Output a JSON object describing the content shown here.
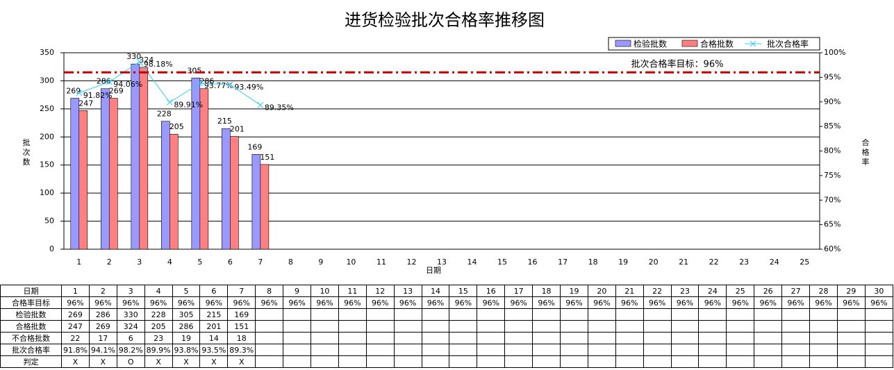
{
  "chart_data": {
    "type": "bar",
    "title": "进货检验批次合格率推移图",
    "categories": [
      1,
      2,
      3,
      4,
      5,
      6,
      7,
      8,
      9,
      10,
      11,
      12,
      13,
      14,
      15,
      16,
      17,
      18,
      19,
      20,
      21,
      22,
      23,
      24,
      25
    ],
    "x_label": "日期",
    "y_label": "批次数",
    "y2_label": "合格率",
    "series": [
      {
        "name": "检验批数",
        "color": "#9999ff",
        "values": [
          269,
          286,
          330,
          228,
          305,
          215,
          169,
          null,
          null,
          null,
          null,
          null,
          null,
          null,
          null,
          null,
          null,
          null,
          null,
          null,
          null,
          null,
          null,
          null,
          null
        ]
      },
      {
        "name": "合格批数",
        "color": "#ff8080",
        "values": [
          247,
          269,
          324,
          205,
          286,
          201,
          151,
          null,
          null,
          null,
          null,
          null,
          null,
          null,
          null,
          null,
          null,
          null,
          null,
          null,
          null,
          null,
          null,
          null,
          null
        ]
      },
      {
        "name": "批次合格率",
        "color": "#33ccff",
        "type": "line",
        "axis": "y2",
        "values": [
          91.82,
          94.06,
          98.18,
          89.91,
          93.77,
          93.49,
          89.35,
          null,
          null,
          null,
          null,
          null,
          null,
          null,
          null,
          null,
          null,
          null,
          null,
          null,
          null,
          null,
          null,
          null,
          null
        ],
        "value_labels": [
          "91.82%",
          "94.06%",
          "98.18%",
          "89.91%",
          "93.77%",
          "93.49%",
          "89.35%",
          null,
          null,
          null,
          null,
          null,
          null,
          null,
          null,
          null,
          null,
          null,
          null,
          null,
          null,
          null,
          null,
          null,
          null
        ]
      }
    ],
    "target": 96,
    "target_label": "批次合格率目标：96%",
    "target_color": "#c00000",
    "ylim": [
      0,
      350
    ],
    "yticks": [
      0,
      50,
      100,
      150,
      200,
      250,
      300,
      350
    ],
    "y2lim": [
      60,
      100
    ],
    "y2ticks": [
      {
        "value": 60,
        "label": "60%"
      },
      {
        "value": 65,
        "label": "65%"
      },
      {
        "value": 70,
        "label": "70%"
      },
      {
        "value": 75,
        "label": "75%"
      },
      {
        "value": 80,
        "label": "80%"
      },
      {
        "value": 85,
        "label": "85%"
      },
      {
        "value": 90,
        "label": "90%"
      },
      {
        "value": 95,
        "label": "95%"
      },
      {
        "value": 100,
        "label": "100%"
      }
    ],
    "grid": true,
    "legend": "top-right"
  },
  "table": {
    "header": [
      "日期",
      1,
      2,
      3,
      4,
      5,
      6,
      7,
      8,
      9,
      10,
      11,
      12,
      13,
      14,
      15,
      16,
      17,
      18,
      19,
      20,
      21,
      22,
      23,
      24,
      25,
      26,
      27,
      28,
      29,
      30
    ],
    "rows": [
      {
        "label": "合格率目标",
        "cells": [
          "96%",
          "96%",
          "96%",
          "96%",
          "96%",
          "96%",
          "96%",
          "96%",
          "96%",
          "96%",
          "96%",
          "96%",
          "96%",
          "96%",
          "96%",
          "96%",
          "96%",
          "96%",
          "96%",
          "96%",
          "96%",
          "96%",
          "96%",
          "96%",
          "96%",
          "96%",
          "96%",
          "96%",
          "96%",
          "96%"
        ]
      },
      {
        "label": "检验批数",
        "cells": [
          269,
          286,
          330,
          228,
          305,
          215,
          169
        ]
      },
      {
        "label": "合格批数",
        "cells": [
          247,
          269,
          324,
          205,
          286,
          201,
          151
        ]
      },
      {
        "label": "不合格批数",
        "cells": [
          22,
          17,
          6,
          23,
          19,
          14,
          18
        ]
      },
      {
        "label": "批次合格率",
        "cells": [
          "91.8%",
          "94.1%",
          "98.2%",
          "89.9%",
          "93.8%",
          "93.5%",
          "89.3%"
        ]
      },
      {
        "label": "判定",
        "cells": [
          "X",
          "X",
          "O",
          "X",
          "X",
          "X",
          "X"
        ]
      }
    ]
  }
}
